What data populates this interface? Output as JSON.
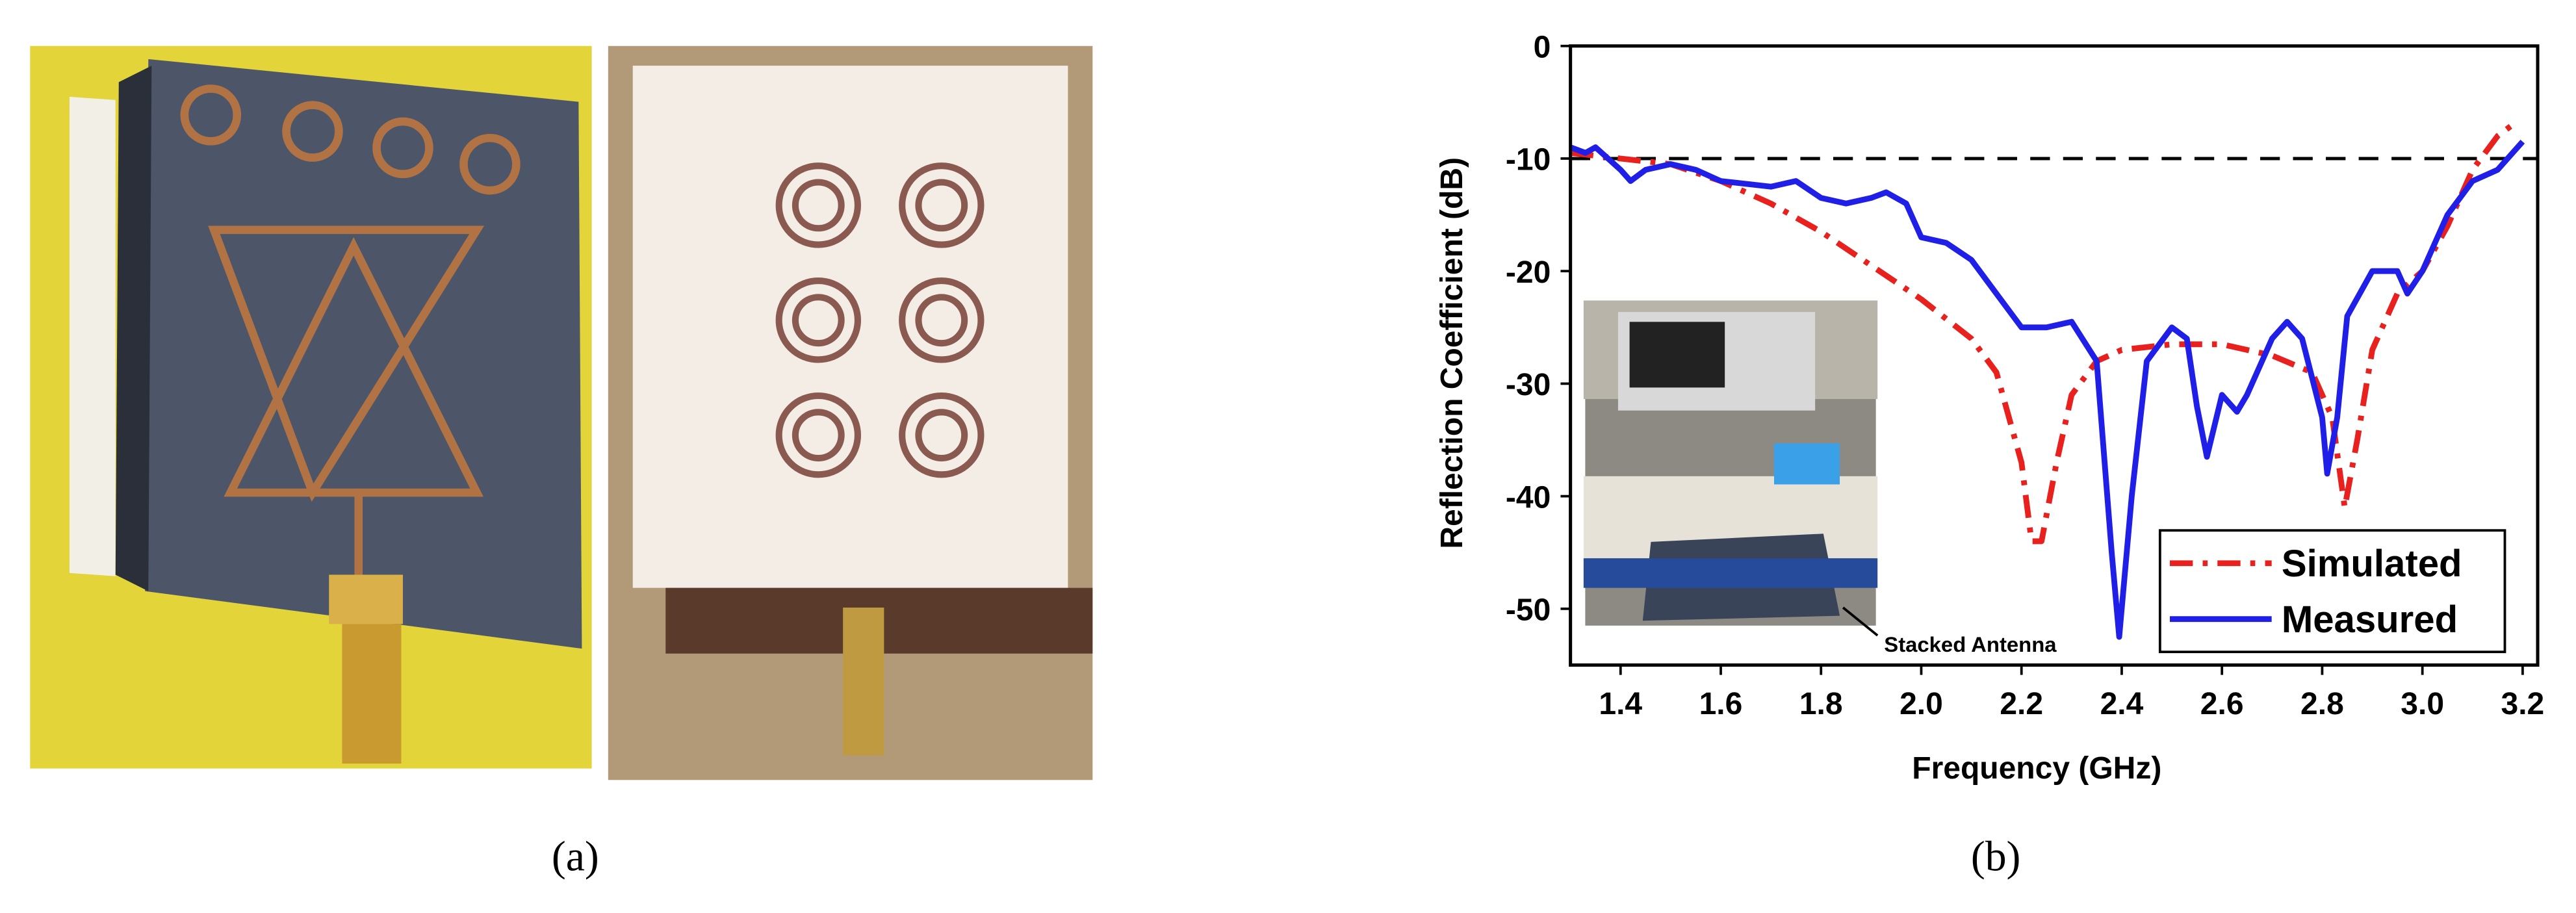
{
  "chart_data": {
    "type": "line",
    "xlabel": "Frequency (GHz)",
    "ylabel": "Reflection Coefficient (dB)",
    "xlim": [
      1.3,
      3.23
    ],
    "ylim": [
      -55,
      0
    ],
    "xticks": [
      1.4,
      1.6,
      1.8,
      {
        "value": 2,
        "label": "2.0"
      },
      2.2,
      2.4,
      2.6,
      2.8,
      {
        "value": 3,
        "label": "3.0"
      },
      3.2
    ],
    "yticks": [
      0,
      -10,
      -20,
      -30,
      -40,
      -50
    ],
    "hlines": [
      -10
    ],
    "legend": "lower right",
    "annotation": "Stacked Antenna",
    "series": [
      {
        "name": "Simulated",
        "color": "#e8211f",
        "dash": "dashdot",
        "x": [
          1.3,
          1.4,
          1.5,
          1.6,
          1.7,
          1.8,
          1.9,
          2.0,
          2.1,
          2.15,
          2.2,
          2.22,
          2.24,
          2.27,
          2.3,
          2.35,
          2.4,
          2.5,
          2.6,
          2.7,
          2.78,
          2.82,
          2.845,
          2.87,
          2.9,
          2.95,
          3.0,
          3.05,
          3.1,
          3.15,
          3.18
        ],
        "values": [
          -9.5,
          -10,
          -10.5,
          -12,
          -14,
          -16.5,
          -19.5,
          -22.5,
          -26,
          -29,
          -37,
          -44,
          -44,
          -37,
          -31,
          -28,
          -27,
          -26.5,
          -26.5,
          -27.5,
          -29,
          -33,
          -41,
          -35,
          -27,
          -22,
          -20,
          -16,
          -11,
          -8,
          -7
        ]
      },
      {
        "name": "Measured",
        "color": "#1f1fe8",
        "dash": "solid",
        "x": [
          1.3,
          1.33,
          1.35,
          1.4,
          1.42,
          1.45,
          1.5,
          1.55,
          1.6,
          1.7,
          1.75,
          1.8,
          1.85,
          1.9,
          1.93,
          1.97,
          2.0,
          2.05,
          2.1,
          2.15,
          2.2,
          2.25,
          2.3,
          2.35,
          2.38,
          2.395,
          2.42,
          2.45,
          2.5,
          2.53,
          2.55,
          2.57,
          2.6,
          2.63,
          2.65,
          2.7,
          2.73,
          2.76,
          2.8,
          2.81,
          2.83,
          2.85,
          2.9,
          2.95,
          2.97,
          3.0,
          3.05,
          3.1,
          3.15,
          3.2
        ],
        "values": [
          -9,
          -9.5,
          -9,
          -11,
          -12,
          -11,
          -10.5,
          -11,
          -12,
          -12.5,
          -12,
          -13.5,
          -14,
          -13.5,
          -13,
          -14,
          -17,
          -17.5,
          -19,
          -22,
          -25,
          -25,
          -24.5,
          -28,
          -45,
          -52.5,
          -40,
          -28,
          -25,
          -26,
          -32,
          -36.5,
          -31,
          -32.5,
          -31,
          -26,
          -24.5,
          -26,
          -33,
          -38,
          -33,
          -24,
          -20,
          -20,
          -22,
          -20,
          -15,
          -12,
          -11,
          -8.5
        ]
      }
    ]
  },
  "panels": {
    "a": "(a)",
    "b": "(b)"
  }
}
